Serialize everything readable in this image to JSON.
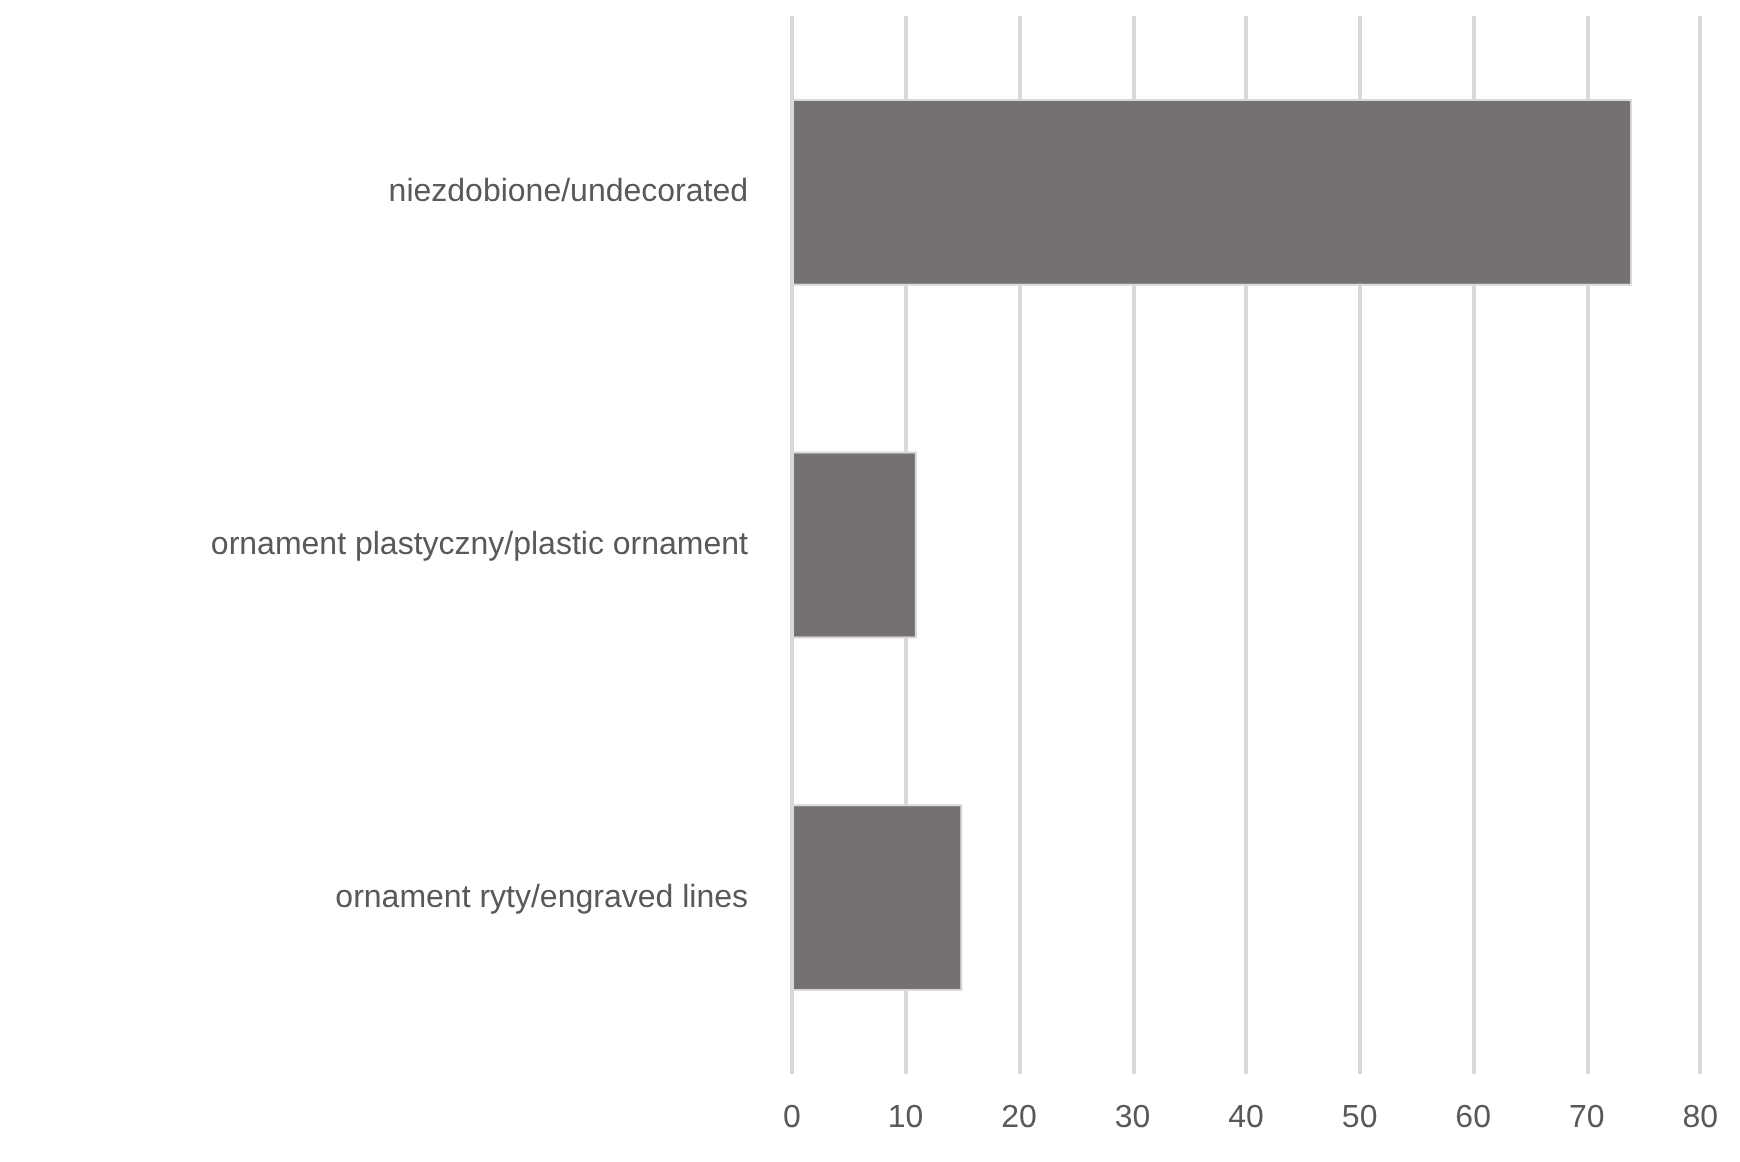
{
  "chart_data": {
    "type": "bar",
    "orientation": "horizontal",
    "categories": [
      "niezdobione/undecorated",
      "ornament plastyczny/plastic ornament",
      "ornament ryty/engraved lines"
    ],
    "values": [
      74,
      11,
      15
    ],
    "color": "#767171",
    "xlim": [
      0,
      80
    ],
    "xticks": [
      0,
      10,
      20,
      30,
      40,
      50,
      60,
      70,
      80
    ],
    "grid": "x"
  }
}
